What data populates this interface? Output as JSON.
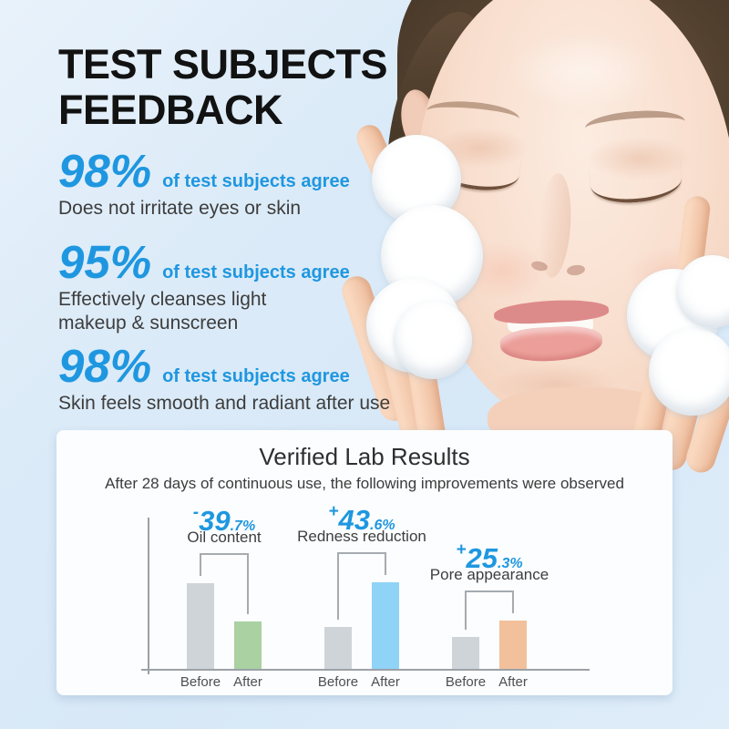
{
  "title": {
    "line1": "TEST SUBJECTS",
    "line2": "FEEDBACK"
  },
  "stats": [
    {
      "percent": "98%",
      "agree_text": "of test subjects agree",
      "description": "Does not irritate eyes or skin"
    },
    {
      "percent": "95%",
      "agree_text": "of test subjects agree",
      "description": "Effectively cleanses light makeup & sunscreen"
    },
    {
      "percent": "98%",
      "agree_text": "of test subjects agree",
      "description": "Skin feels smooth and radiant after use"
    }
  ],
  "panel": {
    "title": "Verified Lab Results",
    "subtitle": "After 28 days of continuous use, the following improvements were observed"
  },
  "chart_data": {
    "type": "bar",
    "title": "Verified Lab Results",
    "subtitle": "After 28 days of continuous use, the following improvements were observed",
    "categories": [
      "Oil content",
      "Redness reduction",
      "Pore appearance"
    ],
    "change_labels": [
      "-39.7%",
      "+43.6%",
      "+25.3%"
    ],
    "bar_pair_labels": [
      "Before",
      "After"
    ],
    "series": [
      {
        "name": "Before",
        "values": [
          94,
          46,
          35
        ]
      },
      {
        "name": "After",
        "values": [
          52,
          95,
          53
        ]
      }
    ],
    "value_unit": "relative bar height (px, unlabeled axis)",
    "axis": {
      "grid": false,
      "baseline": true,
      "y_ticks": []
    },
    "legend": "none",
    "groups": [
      {
        "label": "Oil content",
        "sign": "-",
        "value": "39",
        "decimal": ".7%",
        "before": 94,
        "after": 52,
        "after_color": "#a9d1a1"
      },
      {
        "label": "Redness reduction",
        "sign": "+",
        "value": "43",
        "decimal": ".6%",
        "before": 46,
        "after": 95,
        "after_color": "#8fd3f7"
      },
      {
        "label": "Pore appearance",
        "sign": "+",
        "value": "25",
        "decimal": ".3%",
        "before": 35,
        "after": 53,
        "after_color": "#f2c09b"
      }
    ],
    "before_color": "#cfd4d9",
    "axis_color": "#9ba1a7"
  },
  "colors": {
    "accent_blue": "#1f97e0",
    "title_text": "#121212",
    "body_text": "#3d3d3d",
    "panel_bg": "#fbfdfe",
    "page_bg": "#d9e9f8"
  }
}
